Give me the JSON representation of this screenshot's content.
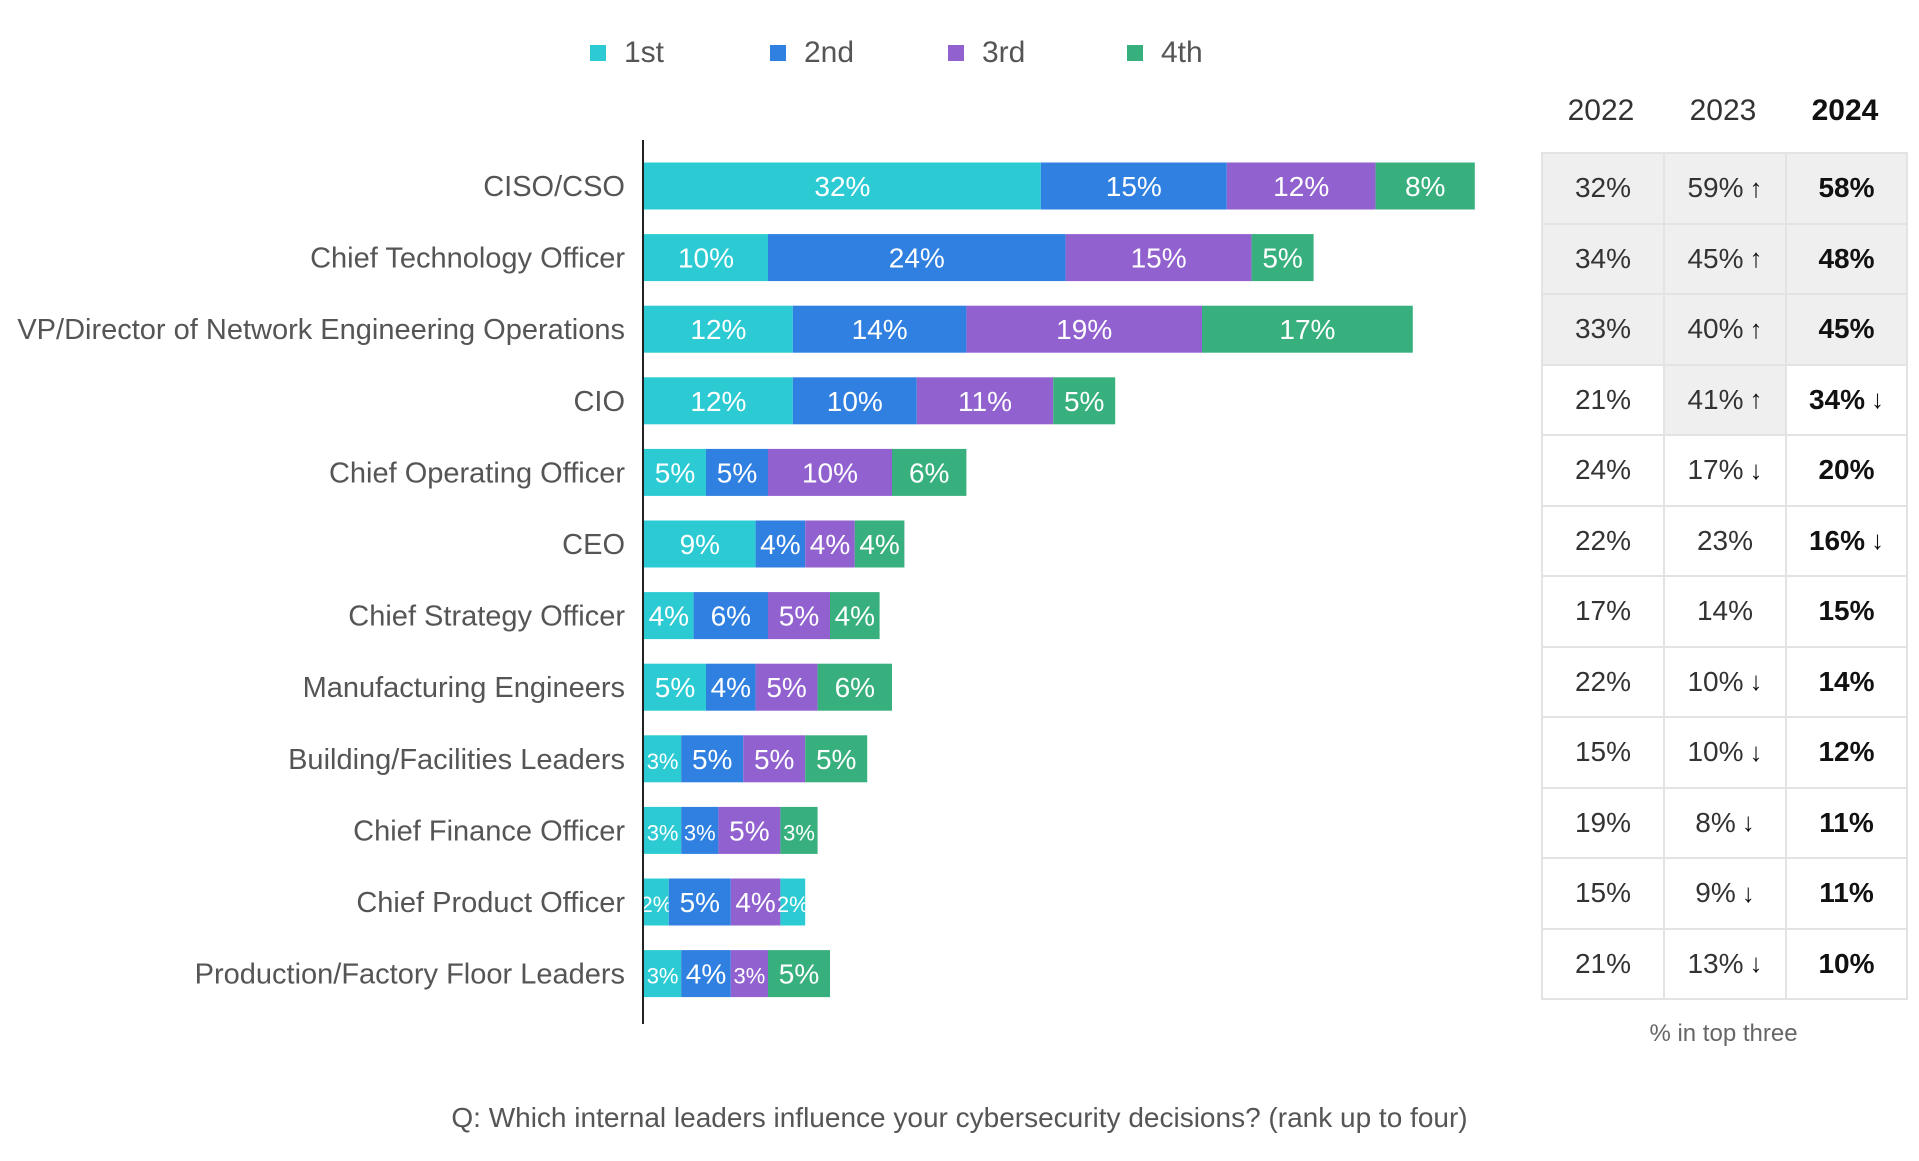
{
  "chart_data": {
    "type": "bar",
    "orientation": "horizontal",
    "stacked": true,
    "categories": [
      "CISO/CSO",
      "Chief Technology Officer",
      "VP/Director of Network Engineering Operations",
      "CIO",
      "Chief Operating Officer",
      "CEO",
      "Chief Strategy Officer",
      "Manufacturing Engineers",
      "Building/Facilities Leaders",
      "Chief Finance Officer",
      "Chief Product Officer",
      "Production/Factory Floor Leaders"
    ],
    "series": [
      {
        "name": "1st",
        "color": "#2ccbd4",
        "values": [
          32,
          10,
          12,
          12,
          5,
          9,
          4,
          5,
          3,
          3,
          2,
          3
        ]
      },
      {
        "name": "2nd",
        "color": "#2f80e0",
        "values": [
          15,
          24,
          14,
          10,
          5,
          4,
          6,
          4,
          5,
          3,
          5,
          4
        ]
      },
      {
        "name": "3rd",
        "color": "#9161cf",
        "values": [
          12,
          15,
          19,
          11,
          10,
          4,
          5,
          5,
          5,
          5,
          4,
          3
        ]
      },
      {
        "name": "4th",
        "color": "#38b07e",
        "values": [
          8,
          5,
          17,
          5,
          6,
          4,
          4,
          6,
          5,
          3,
          2,
          5
        ]
      }
    ],
    "segment_color_overrides": [
      {
        "category_index": 10,
        "series_index": 3,
        "color": "#2ccbd4"
      }
    ],
    "value_suffix": "%",
    "grid": false,
    "legend_position": "top"
  },
  "table": {
    "headers": [
      "2022",
      "2023",
      "2024"
    ],
    "bold_header_index": 2,
    "rows": [
      [
        {
          "v": "32%",
          "shaded": true
        },
        {
          "v": "59%",
          "arrow": "up",
          "shaded": true
        },
        {
          "v": "58%",
          "shaded": true
        }
      ],
      [
        {
          "v": "34%",
          "shaded": true
        },
        {
          "v": "45%",
          "arrow": "up",
          "shaded": true
        },
        {
          "v": "48%",
          "shaded": true
        }
      ],
      [
        {
          "v": "33%",
          "shaded": true
        },
        {
          "v": "40%",
          "arrow": "up",
          "shaded": true
        },
        {
          "v": "45%",
          "shaded": true
        }
      ],
      [
        {
          "v": "21%"
        },
        {
          "v": "41%",
          "arrow": "up",
          "shaded": true
        },
        {
          "v": "34%",
          "arrow": "down"
        }
      ],
      [
        {
          "v": "24%"
        },
        {
          "v": "17%",
          "arrow": "down"
        },
        {
          "v": "20%"
        }
      ],
      [
        {
          "v": "22%"
        },
        {
          "v": "23%"
        },
        {
          "v": "16%",
          "arrow": "down"
        }
      ],
      [
        {
          "v": "17%"
        },
        {
          "v": "14%"
        },
        {
          "v": "15%"
        }
      ],
      [
        {
          "v": "22%"
        },
        {
          "v": "10%",
          "arrow": "down"
        },
        {
          "v": "14%"
        }
      ],
      [
        {
          "v": "15%"
        },
        {
          "v": "10%",
          "arrow": "down"
        },
        {
          "v": "12%"
        }
      ],
      [
        {
          "v": "19%"
        },
        {
          "v": "8%",
          "arrow": "down"
        },
        {
          "v": "11%"
        }
      ],
      [
        {
          "v": "15%"
        },
        {
          "v": "9%",
          "arrow": "down"
        },
        {
          "v": "11%"
        }
      ],
      [
        {
          "v": "21%"
        },
        {
          "v": "13%",
          "arrow": "down"
        },
        {
          "v": "10%"
        }
      ]
    ],
    "note": "% in top three"
  },
  "question": "Q: Which internal leaders influence your cybersecurity decisions? (rank up to four)"
}
